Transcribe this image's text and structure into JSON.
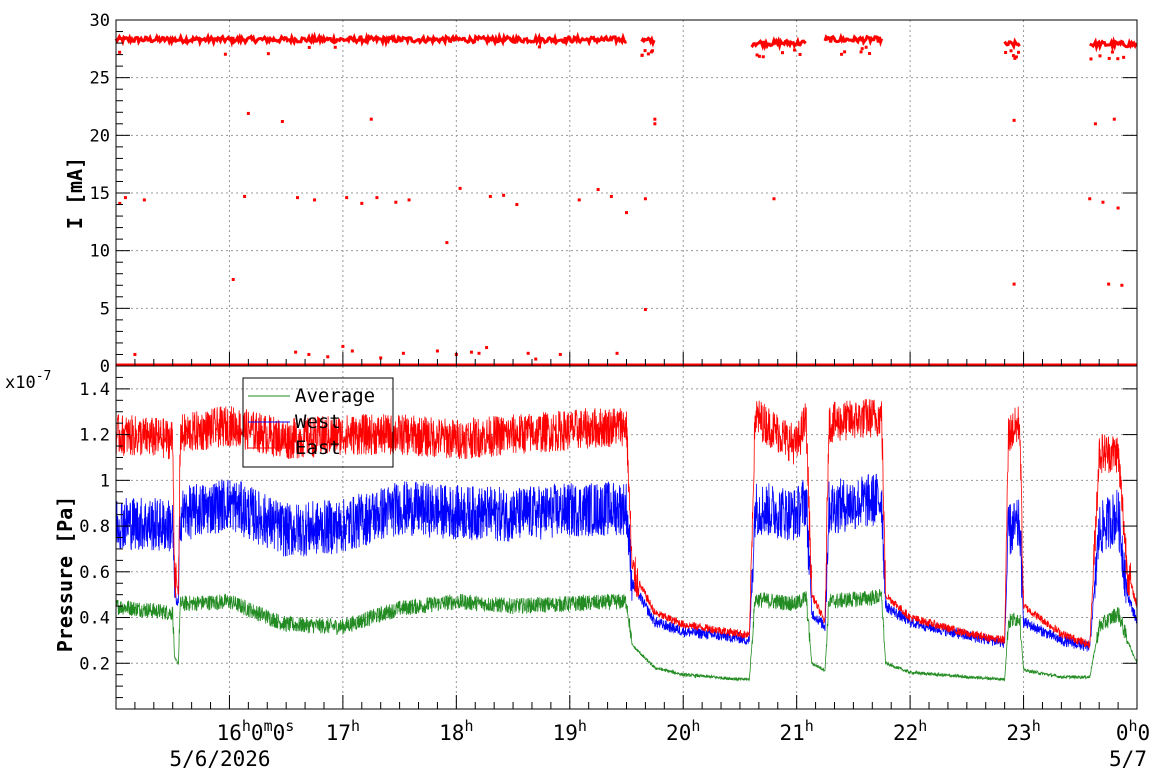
{
  "chart_data": [
    {
      "type": "scatter",
      "xlabel": "",
      "ylabel": "I [mA]",
      "ylim": [
        0,
        30
      ],
      "yticks": [
        0,
        5,
        10,
        15,
        20,
        25,
        30
      ],
      "grid": true,
      "series": [
        {
          "color": "#ff0000",
          "segments": [
            {
              "t": [
                "15:00",
                "19:30"
              ],
              "level": 28.3
            },
            {
              "t": [
                "19:38",
                "19:45"
              ],
              "level": 28.2
            },
            {
              "t": [
                "20:36",
                "21:05"
              ],
              "level": 28.0
            },
            {
              "t": [
                "21:15",
                "21:45"
              ],
              "level": 28.3
            },
            {
              "t": [
                "22:50",
                "22:58"
              ],
              "level": 27.9
            },
            {
              "t": [
                "23:35",
                "24:00"
              ],
              "level": 27.9
            }
          ],
          "points": [
            {
              "t": "15:02",
              "y": 14.1
            },
            {
              "t": "15:05",
              "y": 14.6
            },
            {
              "t": "15:15",
              "y": 14.4
            },
            {
              "t": "16:02",
              "y": 7.5
            },
            {
              "t": "16:08",
              "y": 14.7
            },
            {
              "t": "16:10",
              "y": 21.9
            },
            {
              "t": "16:28",
              "y": 21.2
            },
            {
              "t": "16:36",
              "y": 14.6
            },
            {
              "t": "16:45",
              "y": 14.4
            },
            {
              "t": "17:02",
              "y": 14.6
            },
            {
              "t": "17:10",
              "y": 14.1
            },
            {
              "t": "17:15",
              "y": 21.4
            },
            {
              "t": "17:18",
              "y": 14.6
            },
            {
              "t": "17:28",
              "y": 14.2
            },
            {
              "t": "17:35",
              "y": 14.4
            },
            {
              "t": "17:55",
              "y": 10.7
            },
            {
              "t": "18:02",
              "y": 15.4
            },
            {
              "t": "18:18",
              "y": 14.7
            },
            {
              "t": "18:25",
              "y": 14.8
            },
            {
              "t": "18:32",
              "y": 14.0
            },
            {
              "t": "19:05",
              "y": 14.4
            },
            {
              "t": "19:15",
              "y": 15.3
            },
            {
              "t": "19:22",
              "y": 14.7
            },
            {
              "t": "19:30",
              "y": 13.3
            },
            {
              "t": "19:40",
              "y": 14.5
            },
            {
              "t": "19:40",
              "y": 4.9
            },
            {
              "t": "19:45",
              "y": 21.4
            },
            {
              "t": "19:45",
              "y": 21.0
            },
            {
              "t": "20:48",
              "y": 14.5
            },
            {
              "t": "22:55",
              "y": 21.3
            },
            {
              "t": "22:55",
              "y": 7.1
            },
            {
              "t": "23:35",
              "y": 14.5
            },
            {
              "t": "23:38",
              "y": 21.0
            },
            {
              "t": "23:42",
              "y": 14.2
            },
            {
              "t": "23:45",
              "y": 7.1
            },
            {
              "t": "23:48",
              "y": 21.4
            },
            {
              "t": "23:50",
              "y": 13.7
            },
            {
              "t": "23:52",
              "y": 7.0
            },
            {
              "t": "15:10",
              "y": 1.0
            },
            {
              "t": "16:35",
              "y": 1.2
            },
            {
              "t": "16:42",
              "y": 1.0
            },
            {
              "t": "16:52",
              "y": 0.8
            },
            {
              "t": "17:00",
              "y": 1.7
            },
            {
              "t": "17:05",
              "y": 1.3
            },
            {
              "t": "17:20",
              "y": 0.7
            },
            {
              "t": "17:32",
              "y": 1.1
            },
            {
              "t": "17:50",
              "y": 1.3
            },
            {
              "t": "18:00",
              "y": 1.0
            },
            {
              "t": "18:08",
              "y": 1.2
            },
            {
              "t": "18:12",
              "y": 1.1
            },
            {
              "t": "18:16",
              "y": 1.6
            },
            {
              "t": "18:38",
              "y": 1.1
            },
            {
              "t": "18:42",
              "y": 0.6
            },
            {
              "t": "18:55",
              "y": 1.0
            },
            {
              "t": "19:25",
              "y": 1.1
            }
          ]
        }
      ]
    },
    {
      "type": "line",
      "xlabel": "",
      "ylabel": "Pressure [Pa]",
      "yexponent": "x10",
      "yexponent_sup": "-7",
      "ylim": [
        0.0,
        1.5
      ],
      "yticks": [
        0.2,
        0.4,
        0.6,
        0.8,
        1,
        1.2,
        1.4
      ],
      "grid": true,
      "legend": "top-left",
      "x_range": [
        "15:00",
        "24:00"
      ],
      "series": [
        {
          "name": "Average",
          "color": "#228b22",
          "x": [
            "15:00",
            "15:30",
            "15:31",
            "15:33",
            "15:34",
            "16:00",
            "16:30",
            "17:00",
            "17:30",
            "18:00",
            "18:30",
            "19:00",
            "19:30",
            "19:33",
            "19:40",
            "19:45",
            "20:00",
            "20:30",
            "20:35",
            "20:38",
            "21:00",
            "21:05",
            "21:08",
            "21:15",
            "21:17",
            "21:45",
            "21:47",
            "22:00",
            "22:30",
            "22:50",
            "22:52",
            "22:58",
            "23:00",
            "23:20",
            "23:35",
            "23:40",
            "23:50",
            "23:55",
            "24:00"
          ],
          "y": [
            0.45,
            0.42,
            0.22,
            0.2,
            0.46,
            0.47,
            0.37,
            0.36,
            0.44,
            0.47,
            0.45,
            0.46,
            0.47,
            0.28,
            0.22,
            0.18,
            0.15,
            0.13,
            0.13,
            0.48,
            0.46,
            0.49,
            0.2,
            0.17,
            0.47,
            0.49,
            0.2,
            0.16,
            0.14,
            0.13,
            0.38,
            0.4,
            0.17,
            0.14,
            0.14,
            0.36,
            0.42,
            0.3,
            0.2
          ]
        },
        {
          "name": "West",
          "color": "#0000ff",
          "x": [
            "15:00",
            "15:30",
            "15:31",
            "15:33",
            "15:34",
            "16:00",
            "16:30",
            "17:00",
            "17:30",
            "18:00",
            "18:30",
            "19:00",
            "19:30",
            "19:33",
            "19:40",
            "19:45",
            "20:00",
            "20:30",
            "20:35",
            "20:38",
            "21:00",
            "21:05",
            "21:08",
            "21:15",
            "21:17",
            "21:45",
            "21:47",
            "22:00",
            "22:30",
            "22:50",
            "22:52",
            "22:58",
            "23:00",
            "23:20",
            "23:35",
            "23:40",
            "23:50",
            "23:55",
            "24:00"
          ],
          "y": [
            0.82,
            0.8,
            0.5,
            0.45,
            0.85,
            0.9,
            0.78,
            0.8,
            0.88,
            0.86,
            0.85,
            0.87,
            0.88,
            0.55,
            0.45,
            0.38,
            0.34,
            0.31,
            0.3,
            0.88,
            0.85,
            0.92,
            0.42,
            0.36,
            0.88,
            0.92,
            0.45,
            0.38,
            0.32,
            0.29,
            0.78,
            0.8,
            0.38,
            0.3,
            0.27,
            0.78,
            0.85,
            0.5,
            0.38
          ]
        },
        {
          "name": "East",
          "color": "#ff0000",
          "x": [
            "15:00",
            "15:30",
            "15:31",
            "15:33",
            "15:34",
            "16:00",
            "16:30",
            "17:00",
            "17:30",
            "18:00",
            "18:30",
            "19:00",
            "19:30",
            "19:33",
            "19:40",
            "19:45",
            "20:00",
            "20:30",
            "20:35",
            "20:38",
            "21:00",
            "21:05",
            "21:08",
            "21:15",
            "21:17",
            "21:45",
            "21:47",
            "22:00",
            "22:30",
            "22:50",
            "22:52",
            "22:58",
            "23:00",
            "23:20",
            "23:35",
            "23:40",
            "23:50",
            "23:55",
            "24:00"
          ],
          "y": [
            1.2,
            1.18,
            0.6,
            0.5,
            1.2,
            1.24,
            1.18,
            1.2,
            1.2,
            1.18,
            1.2,
            1.22,
            1.24,
            0.6,
            0.5,
            0.42,
            0.37,
            0.33,
            0.32,
            1.28,
            1.15,
            1.27,
            0.5,
            0.38,
            1.25,
            1.28,
            0.5,
            0.4,
            0.33,
            0.3,
            1.2,
            1.25,
            0.45,
            0.33,
            0.28,
            1.12,
            1.12,
            0.6,
            0.45
          ]
        }
      ]
    }
  ],
  "x_axis": {
    "tick_labels": [
      {
        "t": "16:00",
        "text": "16",
        "sup1": "h",
        "mid": "0",
        "sup2": "m",
        "mid2": "0",
        "sup3": "s"
      },
      {
        "t": "17:00",
        "text": "17",
        "sup1": "h"
      },
      {
        "t": "18:00",
        "text": "18",
        "sup1": "h"
      },
      {
        "t": "19:00",
        "text": "19",
        "sup1": "h"
      },
      {
        "t": "20:00",
        "text": "20",
        "sup1": "h"
      },
      {
        "t": "21:00",
        "text": "21",
        "sup1": "h"
      },
      {
        "t": "22:00",
        "text": "22",
        "sup1": "h"
      },
      {
        "t": "23:00",
        "text": "23",
        "sup1": "h"
      },
      {
        "t": "24:00",
        "text": "0",
        "sup1": "h",
        "mid": "0"
      }
    ],
    "date_left": "5/6/2026",
    "date_right": "5/7"
  }
}
